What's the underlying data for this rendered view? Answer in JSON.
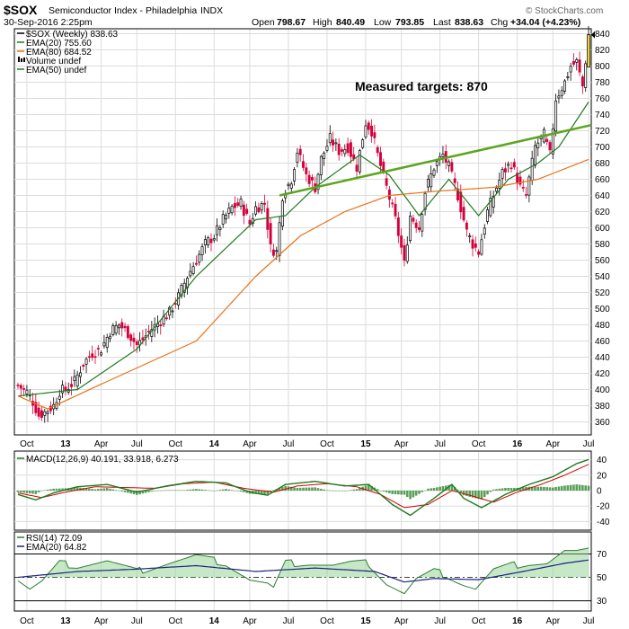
{
  "header": {
    "symbol": "$SOX",
    "name": "Semiconductor Index - Philadelphia",
    "exchange": "INDX",
    "datetime": "30-Sep-2016 2:25pm",
    "open_label": "Open",
    "open": "798.67",
    "high_label": "High",
    "high": "840.49",
    "low_label": "Low",
    "low": "793.85",
    "last_label": "Last",
    "last": "838.63",
    "chg_label": "Chg",
    "chg": "+34.04 (+4.23%)",
    "brand": "© StockCharts.com"
  },
  "legend_main": [
    {
      "text": "$SOX (Weekly) 838.63",
      "color": "#000000"
    },
    {
      "text": "EMA(20) 755.60",
      "color": "#1f7a1f"
    },
    {
      "text": "EMA(80) 684.52",
      "color": "#e8731a"
    },
    {
      "text": "Volume undef",
      "color": "#000000"
    },
    {
      "text": "EMA(50) undef",
      "color": "#1f7a1f"
    }
  ],
  "annotation": "Measured targets: 870",
  "legend_macd": "MACD(12,26,9) 40.191, 33.918, 6.273",
  "legend_rsi": [
    "RSI(14) 72.09",
    "EMA(20) 64.82"
  ],
  "colors": {
    "up": "#000000",
    "down": "#d4003c",
    "ema20": "#1f7a1f",
    "ema80": "#e8731a",
    "trend": "#5aa61e",
    "macd": "#1f7a1f",
    "signal": "#d40000",
    "hist": "#3d8f3d",
    "rsi": "#2e7d32",
    "rsi_fill": "#8fd18f",
    "rsi_ema": "#1a237e"
  },
  "chart_data": [
    {
      "type": "line",
      "title": "$SOX (Weekly)",
      "series_note": "weekly close, estimated from candlesticks",
      "ylim": [
        345,
        845
      ],
      "y_ticks": [
        360,
        380,
        400,
        420,
        440,
        460,
        480,
        500,
        520,
        540,
        560,
        580,
        600,
        620,
        640,
        660,
        680,
        700,
        720,
        740,
        760,
        780,
        800,
        820,
        840
      ],
      "x_ticks": [
        "Oct",
        "13",
        "Apr",
        "Jul",
        "Oct",
        "14",
        "Apr",
        "Jul",
        "Oct",
        "15",
        "Apr",
        "Jul",
        "Oct",
        "16",
        "Apr",
        "Jul"
      ],
      "close_anchors": [
        [
          0,
          405
        ],
        [
          3,
          397
        ],
        [
          5,
          385
        ],
        [
          7,
          368
        ],
        [
          9,
          372
        ],
        [
          12,
          380
        ],
        [
          14,
          398
        ],
        [
          16,
          400
        ],
        [
          19,
          410
        ],
        [
          22,
          432
        ],
        [
          25,
          445
        ],
        [
          28,
          450
        ],
        [
          31,
          472
        ],
        [
          34,
          480
        ],
        [
          37,
          470
        ],
        [
          40,
          455
        ],
        [
          42,
          462
        ],
        [
          45,
          475
        ],
        [
          48,
          485
        ],
        [
          51,
          495
        ],
        [
          54,
          515
        ],
        [
          57,
          540
        ],
        [
          60,
          560
        ],
        [
          63,
          580
        ],
        [
          66,
          590
        ],
        [
          69,
          610
        ],
        [
          72,
          625
        ],
        [
          75,
          630
        ],
        [
          78,
          605
        ],
        [
          80,
          625
        ],
        [
          83,
          630
        ],
        [
          85,
          575
        ],
        [
          87,
          570
        ],
        [
          89,
          640
        ],
        [
          92,
          660
        ],
        [
          94,
          695
        ],
        [
          97,
          665
        ],
        [
          100,
          650
        ],
        [
          102,
          685
        ],
        [
          105,
          710
        ],
        [
          108,
          695
        ],
        [
          111,
          700
        ],
        [
          114,
          675
        ],
        [
          117,
          730
        ],
        [
          119,
          720
        ],
        [
          121,
          690
        ],
        [
          124,
          650
        ],
        [
          127,
          610
        ],
        [
          129,
          575
        ],
        [
          130,
          555
        ],
        [
          132,
          615
        ],
        [
          135,
          600
        ],
        [
          137,
          645
        ],
        [
          140,
          675
        ],
        [
          143,
          690
        ],
        [
          145,
          675
        ],
        [
          148,
          640
        ],
        [
          151,
          595
        ],
        [
          153,
          580
        ],
        [
          155,
          570
        ],
        [
          158,
          620
        ],
        [
          161,
          650
        ],
        [
          163,
          668
        ],
        [
          166,
          680
        ],
        [
          169,
          650
        ],
        [
          171,
          640
        ],
        [
          174,
          700
        ],
        [
          177,
          715
        ],
        [
          179,
          690
        ],
        [
          181,
          760
        ],
        [
          184,
          780
        ],
        [
          186,
          800
        ],
        [
          188,
          805
        ],
        [
          190,
          775
        ],
        [
          192,
          838.63
        ]
      ],
      "ema20": [
        [
          0,
          392
        ],
        [
          20,
          400
        ],
        [
          40,
          450
        ],
        [
          60,
          540
        ],
        [
          80,
          610
        ],
        [
          90,
          615
        ],
        [
          100,
          650
        ],
        [
          115,
          690
        ],
        [
          125,
          665
        ],
        [
          135,
          615
        ],
        [
          145,
          660
        ],
        [
          155,
          615
        ],
        [
          165,
          660
        ],
        [
          175,
          680
        ],
        [
          182,
          700
        ],
        [
          192,
          755.6
        ]
      ],
      "ema80": [
        [
          0,
          392
        ],
        [
          10,
          376
        ],
        [
          30,
          410
        ],
        [
          60,
          460
        ],
        [
          80,
          540
        ],
        [
          95,
          590
        ],
        [
          110,
          620
        ],
        [
          125,
          640
        ],
        [
          140,
          645
        ],
        [
          160,
          650
        ],
        [
          175,
          660
        ],
        [
          192,
          684.52
        ]
      ],
      "trendline": [
        [
          88,
          640
        ],
        [
          200,
          727
        ]
      ]
    },
    {
      "type": "line",
      "title": "MACD(12,26,9)",
      "ylim": [
        -50,
        50
      ],
      "y_ticks": [
        40,
        20,
        0,
        -20,
        -40
      ],
      "macd_anchors": [
        [
          0,
          -5
        ],
        [
          6,
          -12
        ],
        [
          12,
          -3
        ],
        [
          20,
          5
        ],
        [
          30,
          8
        ],
        [
          40,
          -2
        ],
        [
          50,
          6
        ],
        [
          60,
          12
        ],
        [
          70,
          10
        ],
        [
          78,
          -2
        ],
        [
          84,
          -6
        ],
        [
          90,
          8
        ],
        [
          100,
          12
        ],
        [
          110,
          6
        ],
        [
          118,
          8
        ],
        [
          126,
          -18
        ],
        [
          132,
          -32
        ],
        [
          140,
          -10
        ],
        [
          146,
          8
        ],
        [
          150,
          -10
        ],
        [
          156,
          -22
        ],
        [
          164,
          -5
        ],
        [
          172,
          8
        ],
        [
          180,
          18
        ],
        [
          188,
          35
        ],
        [
          192,
          40.191
        ]
      ],
      "signal_anchors": [
        [
          0,
          -3
        ],
        [
          8,
          -9
        ],
        [
          16,
          -2
        ],
        [
          26,
          5
        ],
        [
          36,
          4
        ],
        [
          46,
          3
        ],
        [
          56,
          9
        ],
        [
          66,
          11
        ],
        [
          76,
          3
        ],
        [
          86,
          -2
        ],
        [
          94,
          6
        ],
        [
          104,
          9
        ],
        [
          114,
          5
        ],
        [
          122,
          -5
        ],
        [
          130,
          -22
        ],
        [
          138,
          -18
        ],
        [
          146,
          0
        ],
        [
          152,
          -6
        ],
        [
          160,
          -15
        ],
        [
          168,
          -2
        ],
        [
          176,
          8
        ],
        [
          184,
          20
        ],
        [
          192,
          33.918
        ]
      ]
    },
    {
      "type": "line",
      "title": "RSI(14)",
      "ylim": [
        22,
        88
      ],
      "y_ticks": [
        70,
        50,
        30
      ],
      "rsi_anchors": [
        [
          0,
          48
        ],
        [
          4,
          40
        ],
        [
          8,
          46
        ],
        [
          14,
          62
        ],
        [
          20,
          60
        ],
        [
          30,
          64
        ],
        [
          40,
          55
        ],
        [
          50,
          62
        ],
        [
          60,
          68
        ],
        [
          70,
          62
        ],
        [
          78,
          48
        ],
        [
          84,
          44
        ],
        [
          86,
          40
        ],
        [
          90,
          62
        ],
        [
          98,
          62
        ],
        [
          106,
          60
        ],
        [
          112,
          62
        ],
        [
          118,
          62
        ],
        [
          124,
          45
        ],
        [
          130,
          36
        ],
        [
          134,
          48
        ],
        [
          140,
          55
        ],
        [
          144,
          52
        ],
        [
          150,
          44
        ],
        [
          154,
          40
        ],
        [
          160,
          56
        ],
        [
          166,
          60
        ],
        [
          172,
          62
        ],
        [
          178,
          62
        ],
        [
          184,
          72
        ],
        [
          188,
          71
        ],
        [
          192,
          72.09
        ]
      ],
      "ema_anchors": [
        [
          0,
          50
        ],
        [
          20,
          55
        ],
        [
          40,
          57
        ],
        [
          60,
          60
        ],
        [
          80,
          55
        ],
        [
          100,
          58
        ],
        [
          120,
          55
        ],
        [
          130,
          46
        ],
        [
          140,
          49
        ],
        [
          155,
          48
        ],
        [
          170,
          55
        ],
        [
          184,
          62
        ],
        [
          192,
          64.82
        ]
      ]
    }
  ],
  "x_tick_labels": [
    "Oct",
    "13",
    "Apr",
    "Jul",
    "Oct",
    "14",
    "Apr",
    "Jul",
    "Oct",
    "15",
    "Apr",
    "Jul",
    "Oct",
    "16",
    "Apr",
    "Jul"
  ]
}
